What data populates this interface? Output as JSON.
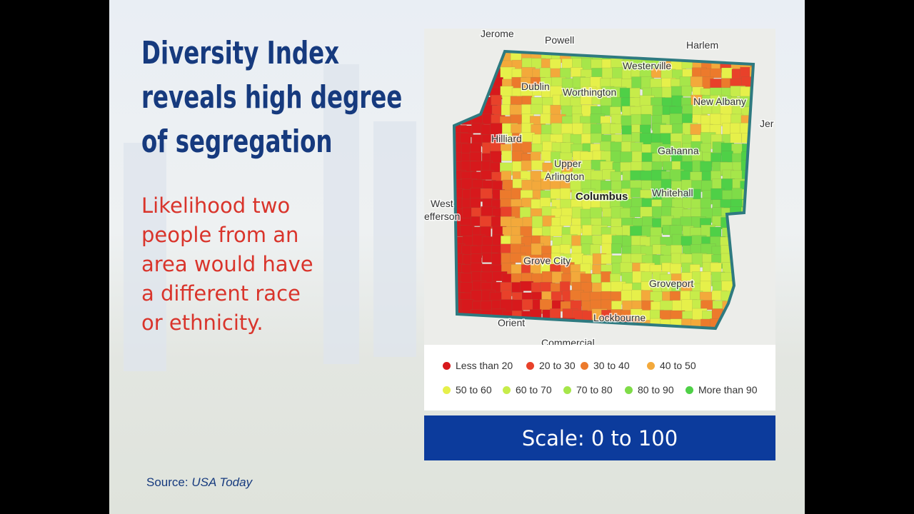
{
  "title": [
    "Diversity Index",
    "reveals high degree",
    "of segregation"
  ],
  "subtitle": [
    "Likelihood two",
    "people from an",
    "area would have",
    "a different race",
    "or ethnicity."
  ],
  "map_labels": [
    "Jerome",
    "Powell",
    "Harlem",
    "Westerville",
    "Dublin",
    "Worthington",
    "New Albany",
    "Jer",
    "Hilliard",
    "Gahanna",
    "Upper",
    "Arlington",
    "Columbus",
    "Whitehall",
    "West",
    "efferson",
    "Grove City",
    "Groveport",
    "Orient",
    "Lockbourne",
    "Commercial"
  ],
  "legend": [
    {
      "label": "Less than 20",
      "color": "#d7191c"
    },
    {
      "label": "20 to 30",
      "color": "#e8412a"
    },
    {
      "label": "30 to 40",
      "color": "#ec7a2c"
    },
    {
      "label": "40 to 50",
      "color": "#f3a93b"
    },
    {
      "label": "50 to 60",
      "color": "#e6f04a"
    },
    {
      "label": "60 to 70",
      "color": "#c7ec4a"
    },
    {
      "label": "70 to 80",
      "color": "#a6e64a"
    },
    {
      "label": "80 to 90",
      "color": "#7fdc48"
    },
    {
      "label": "More than 90",
      "color": "#4fd047"
    }
  ],
  "scale": "Scale: 0 to 100",
  "source": {
    "prefix": "Source:",
    "name": "USA Today"
  }
}
